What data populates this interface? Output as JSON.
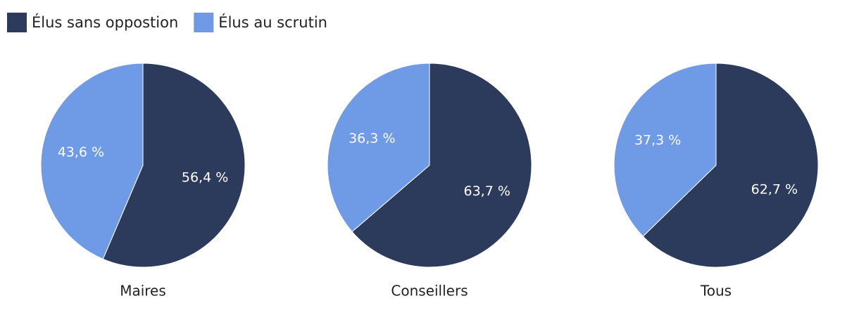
{
  "chart_data": [
    {
      "type": "pie",
      "title": "Maires",
      "categories": [
        "Élus sans oppostion",
        "Élus au scrutin"
      ],
      "values": [
        56.4,
        43.6
      ],
      "value_labels": [
        "56,4 %",
        "43,6 %"
      ],
      "colors": [
        "#2c3b5c",
        "#6f9ae6"
      ]
    },
    {
      "type": "pie",
      "title": "Conseillers",
      "categories": [
        "Élus sans oppostion",
        "Élus au scrutin"
      ],
      "values": [
        63.7,
        36.3
      ],
      "value_labels": [
        "63,7 %",
        "36,3 %"
      ],
      "colors": [
        "#2c3b5c",
        "#6f9ae6"
      ]
    },
    {
      "type": "pie",
      "title": "Tous",
      "categories": [
        "Élus sans oppostion",
        "Élus au scrutin"
      ],
      "values": [
        62.7,
        37.3
      ],
      "value_labels": [
        "62,7 %",
        "37,3 %"
      ],
      "colors": [
        "#2c3b5c",
        "#6f9ae6"
      ]
    }
  ]
}
